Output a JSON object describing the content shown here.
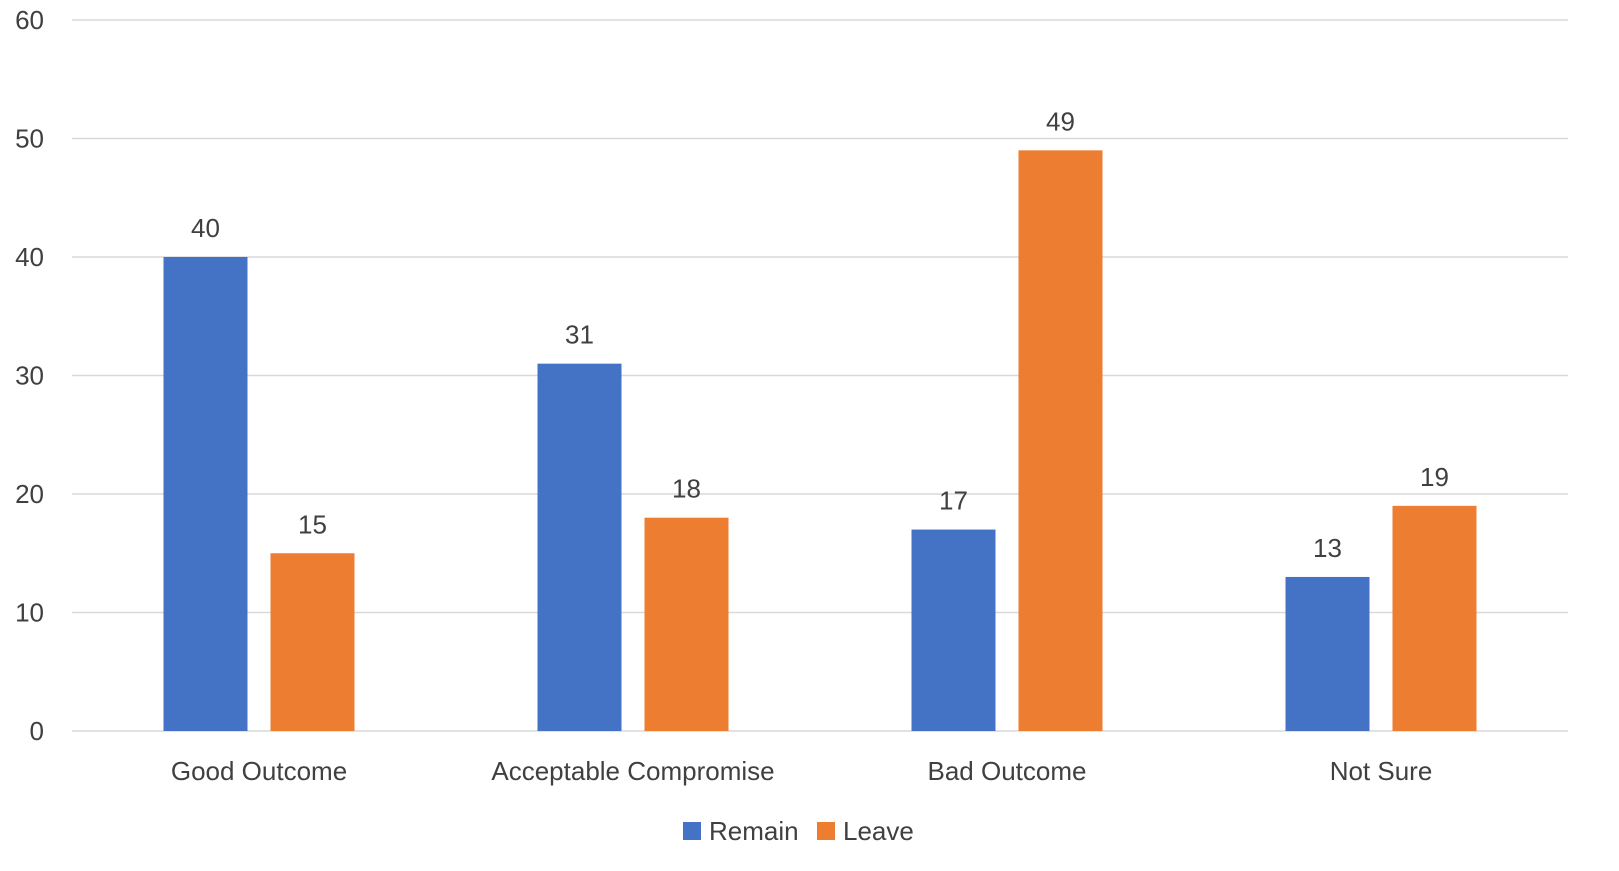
{
  "chart_data": {
    "type": "bar",
    "categories": [
      "Good Outcome",
      "Acceptable Compromise",
      "Bad Outcome",
      "Not Sure"
    ],
    "series": [
      {
        "name": "Remain",
        "values": [
          40,
          31,
          17,
          13
        ],
        "color": "#4472C4"
      },
      {
        "name": "Leave",
        "values": [
          15,
          18,
          49,
          19
        ],
        "color": "#ED7D31"
      }
    ],
    "ylim": [
      0,
      60
    ],
    "yticks": [
      0,
      10,
      20,
      30,
      40,
      50,
      60
    ],
    "grid": true,
    "data_labels": true,
    "legend_position": "bottom"
  }
}
